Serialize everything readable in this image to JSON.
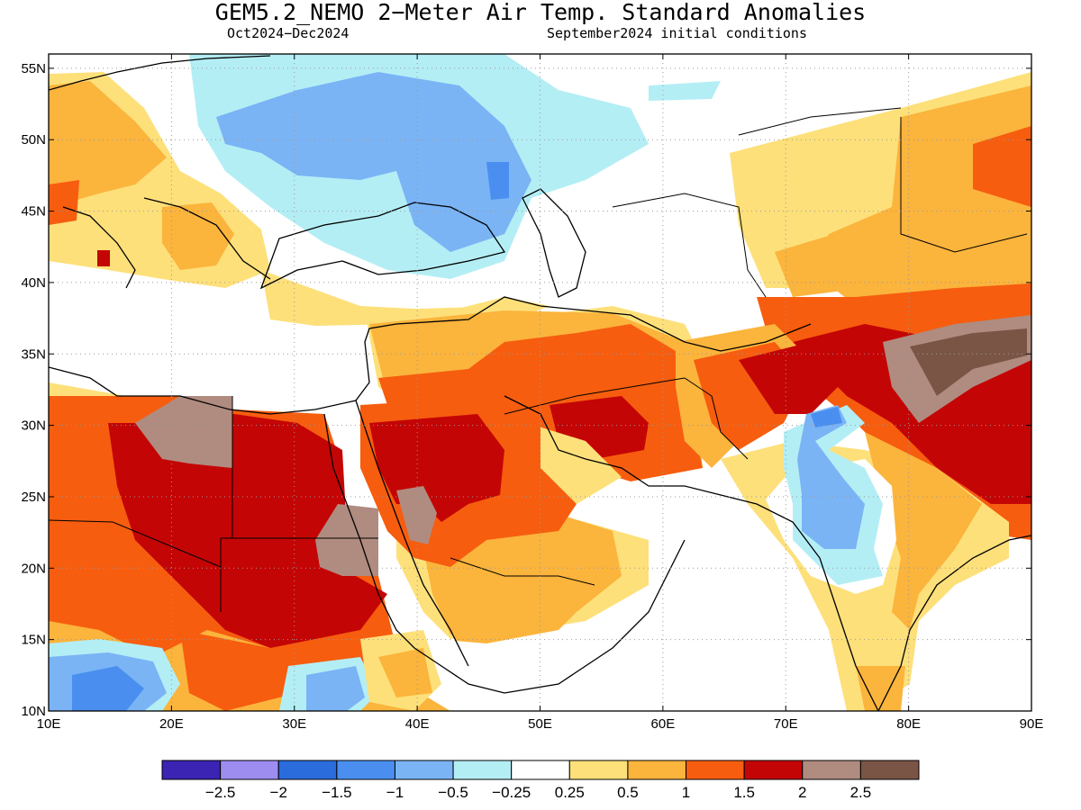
{
  "title": "GEM5.2_NEMO 2−Meter Air Temp. Standard Anomalies",
  "subtitle_period": "Oct2024−Dec2024",
  "subtitle_init": "September2024 initial conditions",
  "map": {
    "lon_range": [
      10,
      90
    ],
    "lat_range": [
      10,
      56
    ],
    "lon_ticks": [
      {
        "value": 10,
        "label": "10E"
      },
      {
        "value": 20,
        "label": "20E"
      },
      {
        "value": 30,
        "label": "30E"
      },
      {
        "value": 40,
        "label": "40E"
      },
      {
        "value": 50,
        "label": "50E"
      },
      {
        "value": 60,
        "label": "60E"
      },
      {
        "value": 70,
        "label": "70E"
      },
      {
        "value": 80,
        "label": "80E"
      },
      {
        "value": 90,
        "label": "90E"
      }
    ],
    "lat_ticks": [
      {
        "value": 55,
        "label": "55N"
      },
      {
        "value": 50,
        "label": "50N"
      },
      {
        "value": 45,
        "label": "45N"
      },
      {
        "value": 40,
        "label": "40N"
      },
      {
        "value": 35,
        "label": "35N"
      },
      {
        "value": 30,
        "label": "30N"
      },
      {
        "value": 25,
        "label": "25N"
      },
      {
        "value": 20,
        "label": "20N"
      },
      {
        "value": 15,
        "label": "15N"
      },
      {
        "value": 10,
        "label": "10N"
      }
    ],
    "grid": "dotted"
  },
  "legend": {
    "colors": [
      "#3b23b4",
      "#9d8df0",
      "#2a6cdc",
      "#4a8ff0",
      "#7ab4f5",
      "#b4eef5",
      "#ffffff",
      "#fde07a",
      "#fbb43c",
      "#f65d0f",
      "#c40505",
      "#b08b80",
      "#7a5545"
    ],
    "labels": [
      "−2.5",
      "−2",
      "−1.5",
      "−1",
      "−0.5",
      "−0.25",
      "0.25",
      "0.5",
      "1",
      "1.5",
      "2",
      "2.5"
    ]
  }
}
